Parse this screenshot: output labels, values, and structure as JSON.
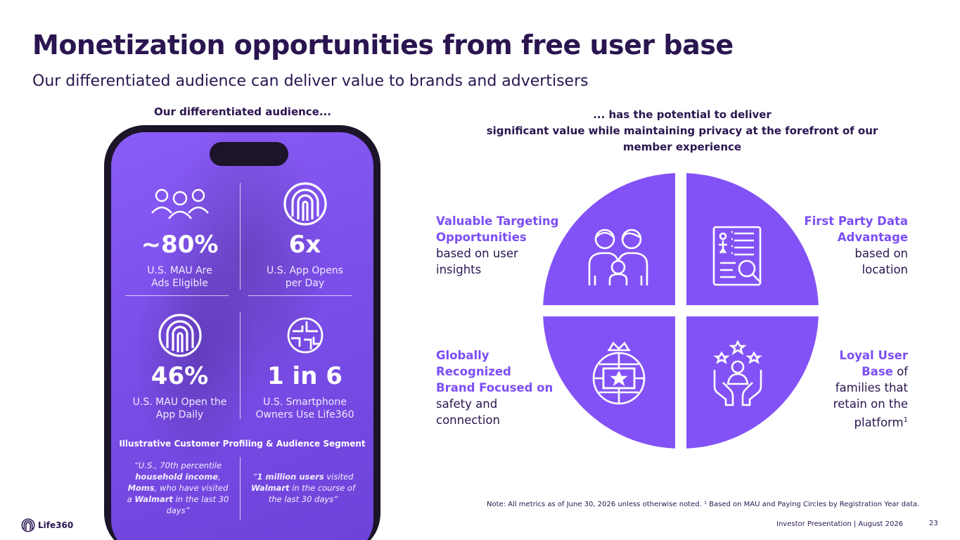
{
  "header": {
    "title": "Monetization opportunities from free user base",
    "subtitle": "Our differentiated audience can deliver value to brands and advertisers"
  },
  "left": {
    "heading": "Our differentiated audience...",
    "stats": [
      {
        "icon": "people-icon",
        "value": "~80%",
        "label_line1": "U.S. MAU Are",
        "label_line2": "Ads Eligible"
      },
      {
        "icon": "life360-icon",
        "value": "6x",
        "label_line1": "U.S. App Opens",
        "label_line2": "per Day"
      },
      {
        "icon": "life360-icon",
        "value": "46%",
        "label_line1": "U.S. MAU Open the",
        "label_line2": "App Daily"
      },
      {
        "icon": "globe-grid-icon",
        "value": "1 in 6",
        "label_line1": "U.S. Smartphone",
        "label_line2": "Owners Use Life360"
      }
    ],
    "profile_title": "Illustrative Customer Profiling & Audience Segment",
    "quotes": [
      {
        "p1": "“U.S., 70th percentile ",
        "b1": "household income",
        "p2": ", ",
        "b2": "Moms",
        "p3": ", who have visited a ",
        "b3": "Walmart",
        "p4": " in the last 30 days”"
      },
      {
        "p1": "“",
        "b1": "1 million users",
        "p2": " visited ",
        "b2": "Walmart",
        "p3": " in the course of the last 30 days”",
        "b3": "",
        "p4": ""
      }
    ]
  },
  "right": {
    "heading_line1": "... has the potential to deliver",
    "heading_line2": "significant value while maintaining privacy at the forefront of our",
    "heading_line3": "member experience",
    "quadrants": {
      "top_left": {
        "hl1": "Valuable Targeting",
        "hl2": "Opportunities",
        "rest1": "based on user",
        "rest2": "insights"
      },
      "top_right": {
        "hl1": "First Party Data",
        "hl2": "Advantage",
        "rest1": "based on",
        "rest2": "location"
      },
      "bottom_left": {
        "hl1": "Globally",
        "hl2": "Recognized",
        "hl3": "Brand Focused on",
        "rest1": "safety and",
        "rest2": "connection"
      },
      "bottom_right": {
        "hl1": "Loyal User",
        "hl2": "Base",
        "rest0": " of",
        "rest1": "families that",
        "rest2": "retain on the",
        "rest3": "platform",
        "sup": "1"
      }
    },
    "icons": [
      "family-icon",
      "document-search-icon",
      "globe-star-icon",
      "hands-person-stars-icon"
    ]
  },
  "colors": {
    "accent": "#7b4ef5",
    "navy": "#2a1550",
    "phone_screen": "#7b4ee9"
  },
  "note": "Note: All metrics as of June 30, 2026 unless otherwise noted. ¹ Based on MAU and Paying Circles by Registration Year data.",
  "footer": {
    "text": "Investor Presentation  |  August 2026",
    "page": "23",
    "logo_text": "Life360"
  }
}
